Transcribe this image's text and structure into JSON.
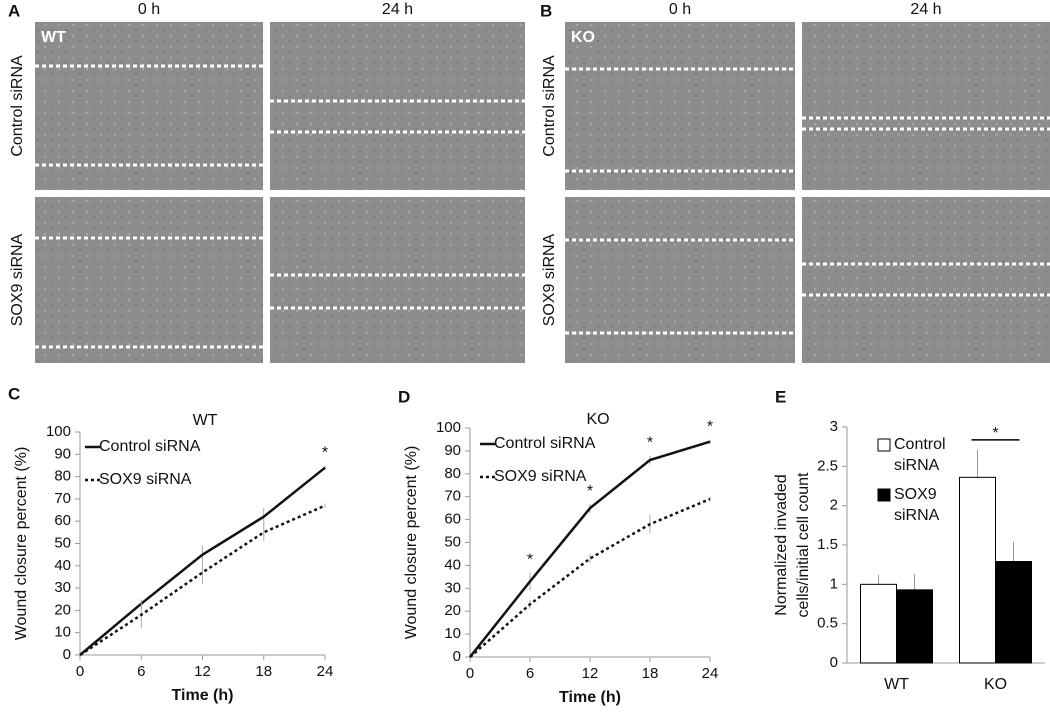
{
  "micrographs": [
    {
      "label": "A",
      "columns": [
        "0 h",
        "24 h"
      ],
      "rows": [
        "Control siRNA",
        "SOX9 siRNA"
      ],
      "genotype": "WT"
    },
    {
      "label": "B",
      "columns": [
        "0 h",
        "24 h"
      ],
      "rows": [
        "Control siRNA",
        "SOX9 siRNA"
      ],
      "genotype": "KO"
    }
  ],
  "chart_data": [
    {
      "type": "line",
      "panel": "C",
      "title": "WT",
      "xlabel": "Time (h)",
      "ylabel": "Wound closure percent (%)",
      "x": [
        0,
        6,
        12,
        18,
        24
      ],
      "xlim": [
        0,
        24
      ],
      "xticks": [
        0,
        6,
        12,
        18,
        24
      ],
      "ylim": [
        0,
        100
      ],
      "yticks": [
        0,
        10,
        20,
        30,
        40,
        50,
        60,
        70,
        80,
        90,
        100
      ],
      "series": [
        {
          "name": "Control siRNA",
          "color": "#111111",
          "dash": false,
          "values": [
            0,
            23,
            45,
            62,
            84
          ],
          "errors": [
            0,
            2,
            4,
            4,
            1
          ]
        },
        {
          "name": "SOX9 siRNA",
          "color": "#111111",
          "dash": true,
          "values": [
            0,
            18,
            37,
            55,
            67
          ],
          "errors": [
            0,
            6,
            5,
            4,
            1
          ]
        }
      ],
      "annotations": [
        {
          "text": "*",
          "x": 24
        }
      ]
    },
    {
      "type": "line",
      "panel": "D",
      "title": "KO",
      "xlabel": "Time (h)",
      "ylabel": "Wound closure percent (%)",
      "x": [
        0,
        6,
        12,
        18,
        24
      ],
      "xlim": [
        0,
        24
      ],
      "xticks": [
        0,
        6,
        12,
        18,
        24
      ],
      "ylim": [
        0,
        100
      ],
      "yticks": [
        0,
        10,
        20,
        30,
        40,
        50,
        60,
        70,
        80,
        90,
        100
      ],
      "series": [
        {
          "name": "Control siRNA",
          "color": "#111111",
          "dash": false,
          "values": [
            0,
            33,
            65,
            86,
            94
          ],
          "errors": [
            0,
            4,
            2,
            2,
            1
          ]
        },
        {
          "name": "SOX9 siRNA",
          "color": "#111111",
          "dash": true,
          "values": [
            0,
            23,
            43,
            58,
            69
          ],
          "errors": [
            0,
            2,
            2,
            4,
            1
          ]
        }
      ],
      "annotations": [
        {
          "text": "*",
          "x": 6
        },
        {
          "text": "*",
          "x": 12
        },
        {
          "text": "*",
          "x": 18
        },
        {
          "text": "*",
          "x": 24
        }
      ]
    },
    {
      "type": "bar",
      "panel": "E",
      "ylabel": [
        "Normalized invaded",
        "cells/initial cell count"
      ],
      "categories": [
        "WT",
        "KO"
      ],
      "ylim": [
        0,
        3
      ],
      "yticks": [
        0,
        0.5,
        1,
        1.5,
        2,
        2.5,
        3
      ],
      "series": [
        {
          "name": "Control siRNA",
          "color": "#ffffff",
          "values": [
            1.0,
            2.36
          ],
          "errors": [
            0.12,
            0.35
          ]
        },
        {
          "name": "SOX9 siRNA",
          "color": "#000000",
          "values": [
            0.93,
            1.29
          ],
          "errors": [
            0.2,
            0.25
          ]
        }
      ],
      "annotations": [
        {
          "text": "*",
          "x": "KO"
        }
      ]
    }
  ]
}
